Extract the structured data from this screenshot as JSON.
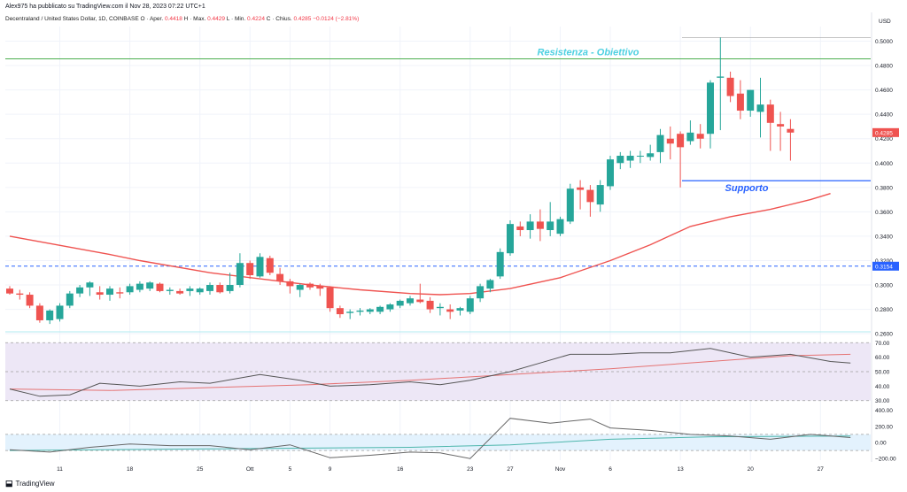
{
  "header": {
    "publisher": "Alex975 ha pubblicato su TradingView.com il Nov 28, 2023 07:22 UTC+1",
    "symbol": "Decentraland / United States Dollar, 1D, COINBASE",
    "open_label": "O",
    "open_text": "Aper.",
    "open": "0.4418",
    "high_label": "H",
    "high_text": "Max.",
    "high": "0.4429",
    "low_label": "L",
    "low_text": "Min.",
    "low": "0.4224",
    "close_label": "C",
    "close_text": "Chius.",
    "close": "0.4285",
    "change": "−0.0124 (−2.81%)"
  },
  "footer": {
    "logo_text": "TradingView",
    "logo_icon": "tradingview-logo-icon"
  },
  "colors": {
    "up": "#26a69a",
    "down": "#ef5350",
    "ma": "#ef5350",
    "resistance": "#4caf50",
    "support": "#2962ff",
    "dashed_level": "#2962ff",
    "annotation_resistance": "#4dd0e1",
    "annotation_support": "#2962ff",
    "rsi_band": "#ede7f6",
    "rsi_line": "#555555",
    "rsi_ma": "#e57373",
    "cci_band": "#e3f2fd",
    "cci_line": "#666666",
    "cci_ma": "#4db6ac"
  },
  "chart_data": [
    {
      "type": "candlestick",
      "title": "Decentraland / United States Dollar, 1D, COINBASE",
      "currency": "USD",
      "ylim": [
        0.255,
        0.512
      ],
      "y_ticks": [
        "0.5000",
        "0.4800",
        "0.4600",
        "0.4400",
        "0.4200",
        "0.4000",
        "0.3800",
        "0.3600",
        "0.3400",
        "0.3200",
        "0.3000",
        "0.2800",
        "0.2600"
      ],
      "x_ticks": [
        {
          "index": 5,
          "label": "11"
        },
        {
          "index": 12,
          "label": "18"
        },
        {
          "index": 19,
          "label": "25"
        },
        {
          "index": 24,
          "label": "Ott"
        },
        {
          "index": 28,
          "label": "5"
        },
        {
          "index": 32,
          "label": "9"
        },
        {
          "index": 39,
          "label": "16"
        },
        {
          "index": 46,
          "label": "23"
        },
        {
          "index": 50,
          "label": "27"
        },
        {
          "index": 55,
          "label": "Nov"
        },
        {
          "index": 60,
          "label": "6"
        },
        {
          "index": 67,
          "label": "13"
        },
        {
          "index": 74,
          "label": "20"
        },
        {
          "index": 81,
          "label": "27"
        }
      ],
      "grid": true,
      "last_price_label": "0.4285",
      "level_label": "0.3154",
      "level_value": 0.3154,
      "resistance_value": 0.4855,
      "resistance_label": "Resistenza - Obiettivo",
      "support_value": 0.3855,
      "support_label": "Supporto",
      "moving_average": [
        [
          0,
          0.34
        ],
        [
          10,
          0.325
        ],
        [
          13,
          0.32
        ],
        [
          20,
          0.31
        ],
        [
          25,
          0.305
        ],
        [
          30,
          0.3
        ],
        [
          35,
          0.296
        ],
        [
          40,
          0.293
        ],
        [
          43,
          0.292
        ],
        [
          46,
          0.293
        ],
        [
          50,
          0.297
        ],
        [
          55,
          0.306
        ],
        [
          60,
          0.32
        ],
        [
          64,
          0.333
        ],
        [
          68,
          0.348
        ],
        [
          72,
          0.356
        ],
        [
          76,
          0.362
        ],
        [
          80,
          0.37
        ],
        [
          82,
          0.375
        ]
      ],
      "candles": [
        {
          "o": 0.297,
          "h": 0.299,
          "l": 0.292,
          "c": 0.293
        },
        {
          "o": 0.293,
          "h": 0.296,
          "l": 0.288,
          "c": 0.292
        },
        {
          "o": 0.292,
          "h": 0.294,
          "l": 0.281,
          "c": 0.283
        },
        {
          "o": 0.283,
          "h": 0.285,
          "l": 0.269,
          "c": 0.271
        },
        {
          "o": 0.271,
          "h": 0.28,
          "l": 0.268,
          "c": 0.279
        },
        {
          "o": 0.272,
          "h": 0.285,
          "l": 0.27,
          "c": 0.283
        },
        {
          "o": 0.283,
          "h": 0.295,
          "l": 0.281,
          "c": 0.293
        },
        {
          "o": 0.293,
          "h": 0.3,
          "l": 0.29,
          "c": 0.298
        },
        {
          "o": 0.298,
          "h": 0.303,
          "l": 0.291,
          "c": 0.302
        },
        {
          "o": 0.294,
          "h": 0.299,
          "l": 0.288,
          "c": 0.292
        },
        {
          "o": 0.292,
          "h": 0.299,
          "l": 0.287,
          "c": 0.297
        },
        {
          "o": 0.294,
          "h": 0.298,
          "l": 0.289,
          "c": 0.293
        },
        {
          "o": 0.294,
          "h": 0.301,
          "l": 0.292,
          "c": 0.299
        },
        {
          "o": 0.296,
          "h": 0.303,
          "l": 0.294,
          "c": 0.301
        },
        {
          "o": 0.297,
          "h": 0.303,
          "l": 0.295,
          "c": 0.302
        },
        {
          "o": 0.301,
          "h": 0.302,
          "l": 0.294,
          "c": 0.295
        },
        {
          "o": 0.295,
          "h": 0.298,
          "l": 0.292,
          "c": 0.296
        },
        {
          "o": 0.295,
          "h": 0.297,
          "l": 0.292,
          "c": 0.293
        },
        {
          "o": 0.295,
          "h": 0.299,
          "l": 0.291,
          "c": 0.297
        },
        {
          "o": 0.294,
          "h": 0.298,
          "l": 0.292,
          "c": 0.297
        },
        {
          "o": 0.295,
          "h": 0.302,
          "l": 0.292,
          "c": 0.3
        },
        {
          "o": 0.3,
          "h": 0.302,
          "l": 0.293,
          "c": 0.294
        },
        {
          "o": 0.295,
          "h": 0.31,
          "l": 0.293,
          "c": 0.3
        },
        {
          "o": 0.3,
          "h": 0.326,
          "l": 0.298,
          "c": 0.318
        },
        {
          "o": 0.318,
          "h": 0.32,
          "l": 0.305,
          "c": 0.308
        },
        {
          "o": 0.307,
          "h": 0.326,
          "l": 0.306,
          "c": 0.323
        },
        {
          "o": 0.322,
          "h": 0.324,
          "l": 0.308,
          "c": 0.31
        },
        {
          "o": 0.309,
          "h": 0.314,
          "l": 0.3,
          "c": 0.303
        },
        {
          "o": 0.303,
          "h": 0.305,
          "l": 0.293,
          "c": 0.299
        },
        {
          "o": 0.296,
          "h": 0.301,
          "l": 0.29,
          "c": 0.3
        },
        {
          "o": 0.301,
          "h": 0.302,
          "l": 0.296,
          "c": 0.298
        },
        {
          "o": 0.299,
          "h": 0.301,
          "l": 0.291,
          "c": 0.297
        },
        {
          "o": 0.298,
          "h": 0.299,
          "l": 0.278,
          "c": 0.281
        },
        {
          "o": 0.281,
          "h": 0.283,
          "l": 0.273,
          "c": 0.276
        },
        {
          "o": 0.277,
          "h": 0.28,
          "l": 0.272,
          "c": 0.278
        },
        {
          "o": 0.278,
          "h": 0.281,
          "l": 0.275,
          "c": 0.279
        },
        {
          "o": 0.278,
          "h": 0.281,
          "l": 0.276,
          "c": 0.28
        },
        {
          "o": 0.278,
          "h": 0.283,
          "l": 0.276,
          "c": 0.282
        },
        {
          "o": 0.28,
          "h": 0.285,
          "l": 0.278,
          "c": 0.284
        },
        {
          "o": 0.283,
          "h": 0.288,
          "l": 0.281,
          "c": 0.287
        },
        {
          "o": 0.285,
          "h": 0.291,
          "l": 0.283,
          "c": 0.289
        },
        {
          "o": 0.288,
          "h": 0.301,
          "l": 0.285,
          "c": 0.286
        },
        {
          "o": 0.287,
          "h": 0.29,
          "l": 0.277,
          "c": 0.28
        },
        {
          "o": 0.281,
          "h": 0.285,
          "l": 0.275,
          "c": 0.282
        },
        {
          "o": 0.28,
          "h": 0.284,
          "l": 0.272,
          "c": 0.278
        },
        {
          "o": 0.279,
          "h": 0.282,
          "l": 0.275,
          "c": 0.281
        },
        {
          "o": 0.278,
          "h": 0.291,
          "l": 0.276,
          "c": 0.289
        },
        {
          "o": 0.289,
          "h": 0.301,
          "l": 0.286,
          "c": 0.299
        },
        {
          "o": 0.297,
          "h": 0.305,
          "l": 0.294,
          "c": 0.304
        },
        {
          "o": 0.307,
          "h": 0.33,
          "l": 0.305,
          "c": 0.327
        },
        {
          "o": 0.326,
          "h": 0.353,
          "l": 0.324,
          "c": 0.35
        },
        {
          "o": 0.348,
          "h": 0.352,
          "l": 0.34,
          "c": 0.345
        },
        {
          "o": 0.345,
          "h": 0.358,
          "l": 0.338,
          "c": 0.352
        },
        {
          "o": 0.352,
          "h": 0.362,
          "l": 0.336,
          "c": 0.346
        },
        {
          "o": 0.345,
          "h": 0.368,
          "l": 0.34,
          "c": 0.352
        },
        {
          "o": 0.342,
          "h": 0.356,
          "l": 0.34,
          "c": 0.354
        },
        {
          "o": 0.352,
          "h": 0.383,
          "l": 0.35,
          "c": 0.379
        },
        {
          "o": 0.38,
          "h": 0.386,
          "l": 0.362,
          "c": 0.378
        },
        {
          "o": 0.378,
          "h": 0.382,
          "l": 0.356,
          "c": 0.368
        },
        {
          "o": 0.366,
          "h": 0.386,
          "l": 0.36,
          "c": 0.382
        },
        {
          "o": 0.381,
          "h": 0.406,
          "l": 0.378,
          "c": 0.403
        },
        {
          "o": 0.4,
          "h": 0.409,
          "l": 0.395,
          "c": 0.406
        },
        {
          "o": 0.402,
          "h": 0.41,
          "l": 0.396,
          "c": 0.406
        },
        {
          "o": 0.406,
          "h": 0.41,
          "l": 0.4,
          "c": 0.406
        },
        {
          "o": 0.405,
          "h": 0.415,
          "l": 0.402,
          "c": 0.408
        },
        {
          "o": 0.409,
          "h": 0.428,
          "l": 0.4,
          "c": 0.423
        },
        {
          "o": 0.42,
          "h": 0.43,
          "l": 0.403,
          "c": 0.416
        },
        {
          "o": 0.424,
          "h": 0.426,
          "l": 0.38,
          "c": 0.413
        },
        {
          "o": 0.418,
          "h": 0.435,
          "l": 0.415,
          "c": 0.425
        },
        {
          "o": 0.424,
          "h": 0.432,
          "l": 0.412,
          "c": 0.42
        },
        {
          "o": 0.424,
          "h": 0.468,
          "l": 0.412,
          "c": 0.466
        },
        {
          "o": 0.47,
          "h": 0.503,
          "l": 0.427,
          "c": 0.471
        },
        {
          "o": 0.47,
          "h": 0.475,
          "l": 0.45,
          "c": 0.455
        },
        {
          "o": 0.457,
          "h": 0.468,
          "l": 0.436,
          "c": 0.443
        },
        {
          "o": 0.443,
          "h": 0.46,
          "l": 0.438,
          "c": 0.46
        },
        {
          "o": 0.442,
          "h": 0.47,
          "l": 0.421,
          "c": 0.448
        },
        {
          "o": 0.448,
          "h": 0.452,
          "l": 0.41,
          "c": 0.433
        },
        {
          "o": 0.432,
          "h": 0.442,
          "l": 0.41,
          "c": 0.43
        },
        {
          "o": 0.428,
          "h": 0.436,
          "l": 0.402,
          "c": 0.425
        }
      ]
    },
    {
      "type": "line",
      "title": "RSI",
      "ylim": [
        28,
        72
      ],
      "y_ticks": [
        "70.00",
        "60.00",
        "50.00",
        "40.00",
        "30.00"
      ],
      "band": [
        30,
        70
      ],
      "series": [
        {
          "values": [
            [
              0,
              38
            ],
            [
              3,
              33
            ],
            [
              6,
              34
            ],
            [
              9,
              42
            ],
            [
              13,
              40
            ],
            [
              17,
              43
            ],
            [
              20,
              42
            ],
            [
              25,
              48
            ],
            [
              29,
              44
            ],
            [
              32,
              40
            ],
            [
              36,
              41
            ],
            [
              40,
              43
            ],
            [
              43,
              41
            ],
            [
              46,
              44
            ],
            [
              50,
              50
            ],
            [
              53,
              56
            ],
            [
              56,
              62
            ],
            [
              60,
              62
            ],
            [
              63,
              63
            ],
            [
              66,
              63
            ],
            [
              70,
              66
            ],
            [
              74,
              60
            ],
            [
              78,
              62
            ],
            [
              82,
              57
            ],
            [
              84,
              56
            ]
          ]
        },
        {
          "values": [
            [
              0,
              38
            ],
            [
              10,
              37
            ],
            [
              20,
              39
            ],
            [
              30,
              41
            ],
            [
              40,
              44
            ],
            [
              50,
              48
            ],
            [
              60,
              52
            ],
            [
              70,
              57
            ],
            [
              78,
              61
            ],
            [
              84,
              62
            ]
          ]
        }
      ]
    },
    {
      "type": "line",
      "title": "CCI",
      "ylim": [
        -220,
        440
      ],
      "y_ticks": [
        "400.00",
        "200.00",
        "0.00",
        "−200.00"
      ],
      "band": [
        -100,
        100
      ],
      "series": [
        {
          "values": [
            [
              0,
              -90
            ],
            [
              4,
              -120
            ],
            [
              8,
              -60
            ],
            [
              12,
              -20
            ],
            [
              16,
              -40
            ],
            [
              20,
              -40
            ],
            [
              24,
              -90
            ],
            [
              28,
              -30
            ],
            [
              32,
              -190
            ],
            [
              36,
              -160
            ],
            [
              40,
              -120
            ],
            [
              43,
              -130
            ],
            [
              46,
              -200
            ],
            [
              50,
              300
            ],
            [
              54,
              240
            ],
            [
              58,
              290
            ],
            [
              60,
              180
            ],
            [
              64,
              150
            ],
            [
              68,
              100
            ],
            [
              72,
              80
            ],
            [
              76,
              40
            ],
            [
              80,
              100
            ],
            [
              84,
              60
            ]
          ]
        },
        {
          "values": [
            [
              0,
              -100
            ],
            [
              20,
              -80
            ],
            [
              40,
              -60
            ],
            [
              50,
              -30
            ],
            [
              60,
              40
            ],
            [
              70,
              70
            ],
            [
              84,
              80
            ]
          ]
        }
      ]
    }
  ]
}
